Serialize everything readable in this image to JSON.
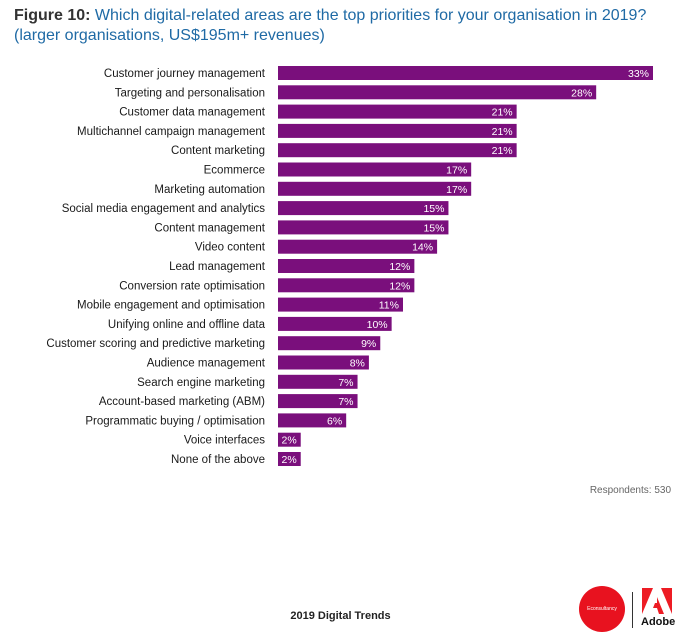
{
  "header": {
    "figure_label": "Figure 10:",
    "question": "Which digital-related areas are the top priorities for your organisation in 2019?",
    "subtitle": "(larger organisations, US$195m+ revenues)"
  },
  "chart_data": {
    "type": "bar",
    "orientation": "horizontal",
    "categories": [
      "Customer journey management",
      "Targeting and personalisation",
      "Customer data management",
      "Multichannel campaign management",
      "Content marketing",
      "Ecommerce",
      "Marketing automation",
      "Social media engagement and analytics",
      "Content management",
      "Video content",
      "Lead management",
      "Conversion rate optimisation",
      "Mobile engagement and optimisation",
      "Unifying online and offline data",
      "Customer scoring and predictive marketing",
      "Audience management",
      "Search engine marketing",
      "Account-based marketing (ABM)",
      "Programmatic buying / optimisation",
      "Voice interfaces",
      "None of the above"
    ],
    "values": [
      33,
      28,
      21,
      21,
      21,
      17,
      17,
      15,
      15,
      14,
      12,
      12,
      11,
      10,
      9,
      8,
      7,
      7,
      6,
      2,
      2
    ],
    "value_suffix": "%",
    "xlim": [
      0,
      33
    ],
    "bar_color": "#7a0f7c",
    "grid": false,
    "legend": "none"
  },
  "note": "Respondents: 530",
  "footer": "2019 Digital Trends",
  "logos": {
    "econsultancy_text": "Econsultancy",
    "adobe_text": "Adobe",
    "econsultancy_color": "#e8121f"
  }
}
